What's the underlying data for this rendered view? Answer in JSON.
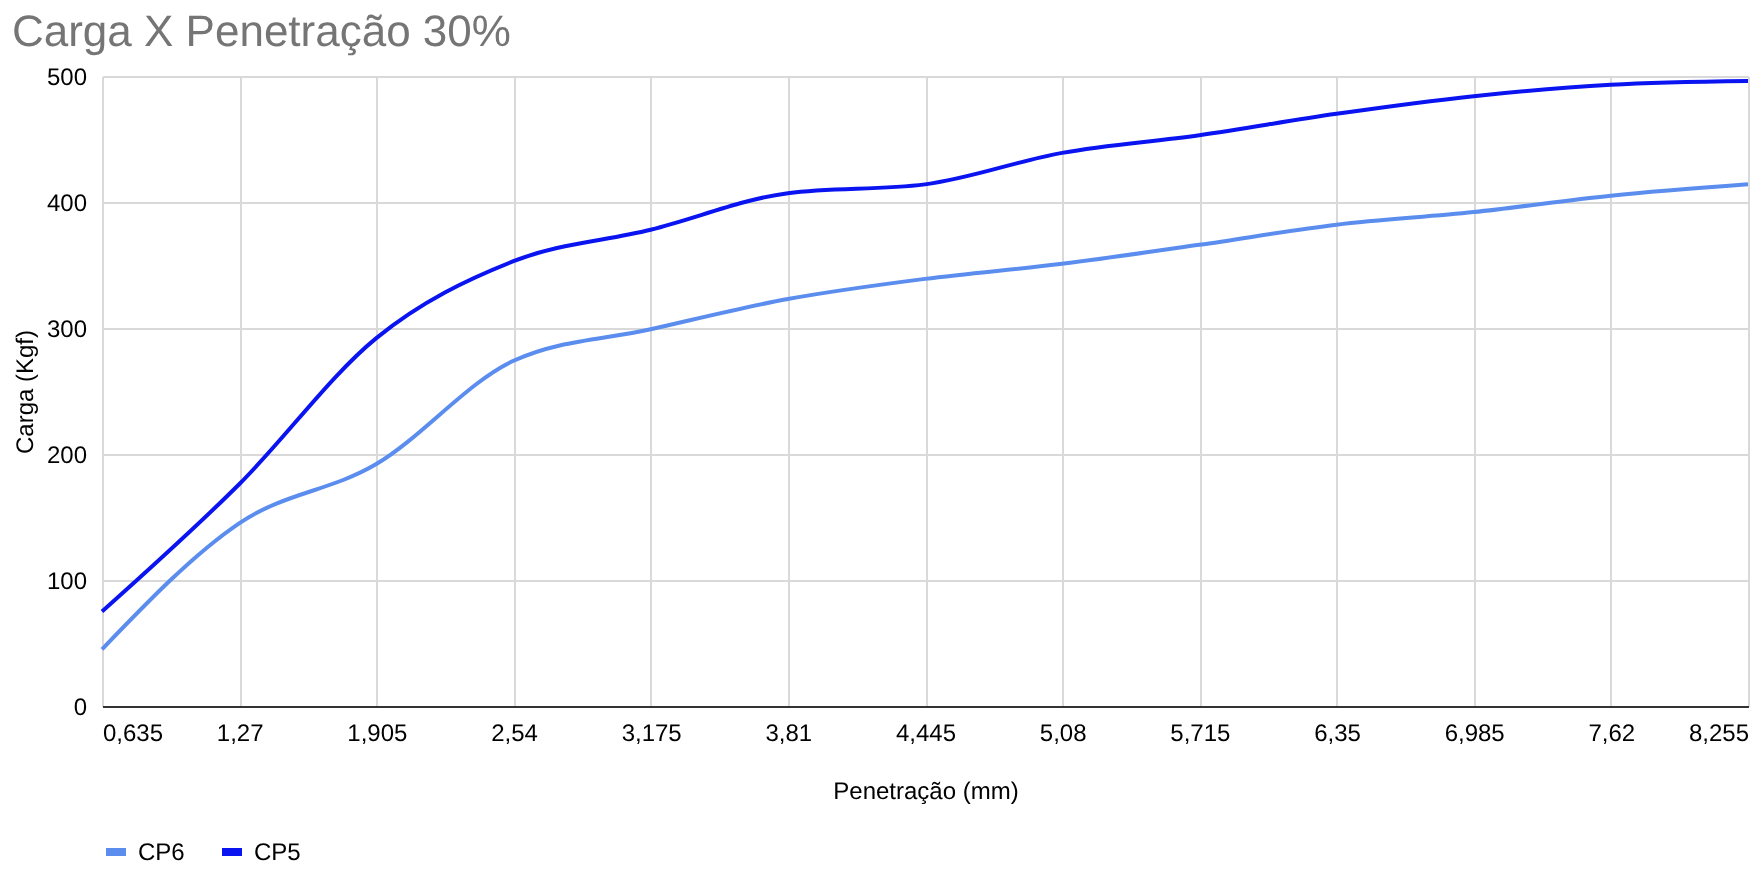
{
  "chart_data": {
    "type": "line",
    "title": "Carga X Penetração 30%",
    "xlabel": "Penetração (mm)",
    "ylabel": "Carga (Kgf)",
    "categories": [
      "0,635",
      "1,27",
      "1,905",
      "2,54",
      "3,175",
      "3,81",
      "4,445",
      "5,08",
      "5,715",
      "6,35",
      "6,985",
      "7,62",
      "8,255"
    ],
    "series": [
      {
        "name": "CP6",
        "color": "#5b8def",
        "values": [
          45,
          145,
          192,
          274,
          299,
          323,
          339,
          351,
          366,
          382,
          392,
          405,
          414
        ]
      },
      {
        "name": "CP5",
        "color": "#0a14f0",
        "values": [
          75,
          176,
          292,
          353,
          378,
          407,
          414,
          439,
          453,
          470,
          484,
          493,
          496
        ]
      }
    ],
    "ylim": [
      0,
      500
    ],
    "yticks": [
      0,
      100,
      200,
      300,
      400,
      500
    ],
    "grid": true,
    "legend": "bottom",
    "marker": "none",
    "line_style": "solid"
  }
}
